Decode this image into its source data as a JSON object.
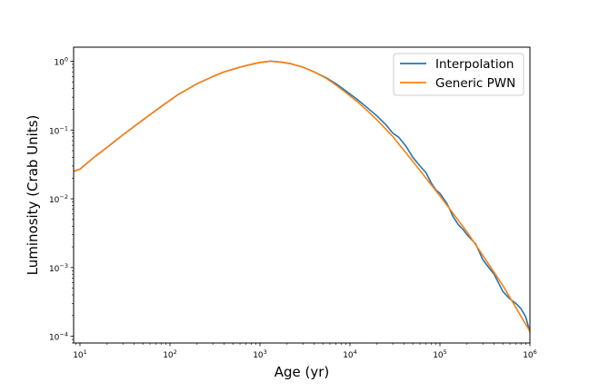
{
  "chart_data": {
    "type": "line",
    "xlabel": "Age (yr)",
    "ylabel": "Luminosity (Crab Units)",
    "xscale": "log",
    "yscale": "log",
    "xlim": [
      8.5,
      1000000
    ],
    "ylim": [
      8e-05,
      1.6
    ],
    "grid": false,
    "legend_position": "top-right",
    "x_ticks": [
      {
        "value": 10,
        "base": "10",
        "exp": "1"
      },
      {
        "value": 100,
        "base": "10",
        "exp": "2"
      },
      {
        "value": 1000,
        "base": "10",
        "exp": "3"
      },
      {
        "value": 10000,
        "base": "10",
        "exp": "4"
      },
      {
        "value": 100000,
        "base": "10",
        "exp": "5"
      },
      {
        "value": 1000000,
        "base": "10",
        "exp": "6"
      }
    ],
    "y_ticks": [
      {
        "value": 1,
        "base": "10",
        "exp": "0"
      },
      {
        "value": 0.1,
        "base": "10",
        "exp": "−1"
      },
      {
        "value": 0.01,
        "base": "10",
        "exp": "−2"
      },
      {
        "value": 0.001,
        "base": "10",
        "exp": "−3"
      },
      {
        "value": 0.0001,
        "base": "10",
        "exp": "−4"
      }
    ],
    "series": [
      {
        "name": "Interpolation",
        "color": "#1f77b4",
        "x": [
          8.5,
          10,
          12,
          15,
          20,
          30,
          50,
          80,
          120,
          200,
          300,
          400,
          600,
          800,
          1000,
          1300,
          1700,
          2200,
          3000,
          4000,
          5500,
          7000,
          9000,
          12000,
          15000,
          20000,
          25000,
          30000,
          35000,
          42000,
          50000,
          60000,
          70000,
          80000,
          90000,
          100000,
          120000,
          140000,
          160000,
          180000,
          200000,
          250000,
          300000,
          350000,
          400000,
          500000,
          600000,
          700000,
          800000,
          900000,
          1000000
        ],
        "y": [
          0.025,
          0.027,
          0.033,
          0.042,
          0.056,
          0.085,
          0.14,
          0.22,
          0.32,
          0.47,
          0.6,
          0.7,
          0.82,
          0.9,
          0.96,
          1.0,
          0.97,
          0.92,
          0.82,
          0.7,
          0.57,
          0.47,
          0.37,
          0.28,
          0.22,
          0.16,
          0.12,
          0.09,
          0.078,
          0.058,
          0.04,
          0.03,
          0.024,
          0.017,
          0.0135,
          0.012,
          0.0085,
          0.0055,
          0.0042,
          0.0036,
          0.003,
          0.0022,
          0.0013,
          0.001,
          0.0008,
          0.00045,
          0.00035,
          0.0003,
          0.00025,
          0.00019,
          0.000115
        ]
      },
      {
        "name": "Generic PWN",
        "color": "#ff7f0e",
        "x": [
          8.5,
          10,
          12,
          15,
          20,
          30,
          50,
          80,
          120,
          200,
          300,
          400,
          600,
          800,
          1000,
          1300,
          1700,
          2200,
          3000,
          4000,
          5500,
          7000,
          9000,
          12000,
          15000,
          20000,
          30000,
          50000,
          100000,
          200000,
          300000,
          500000,
          1000000
        ],
        "y": [
          0.025,
          0.027,
          0.033,
          0.042,
          0.056,
          0.085,
          0.14,
          0.22,
          0.32,
          0.47,
          0.6,
          0.7,
          0.82,
          0.9,
          0.96,
          1.0,
          0.97,
          0.92,
          0.82,
          0.7,
          0.56,
          0.45,
          0.35,
          0.26,
          0.2,
          0.14,
          0.08,
          0.035,
          0.011,
          0.0033,
          0.0015,
          0.00055,
          0.000118
        ]
      }
    ]
  }
}
